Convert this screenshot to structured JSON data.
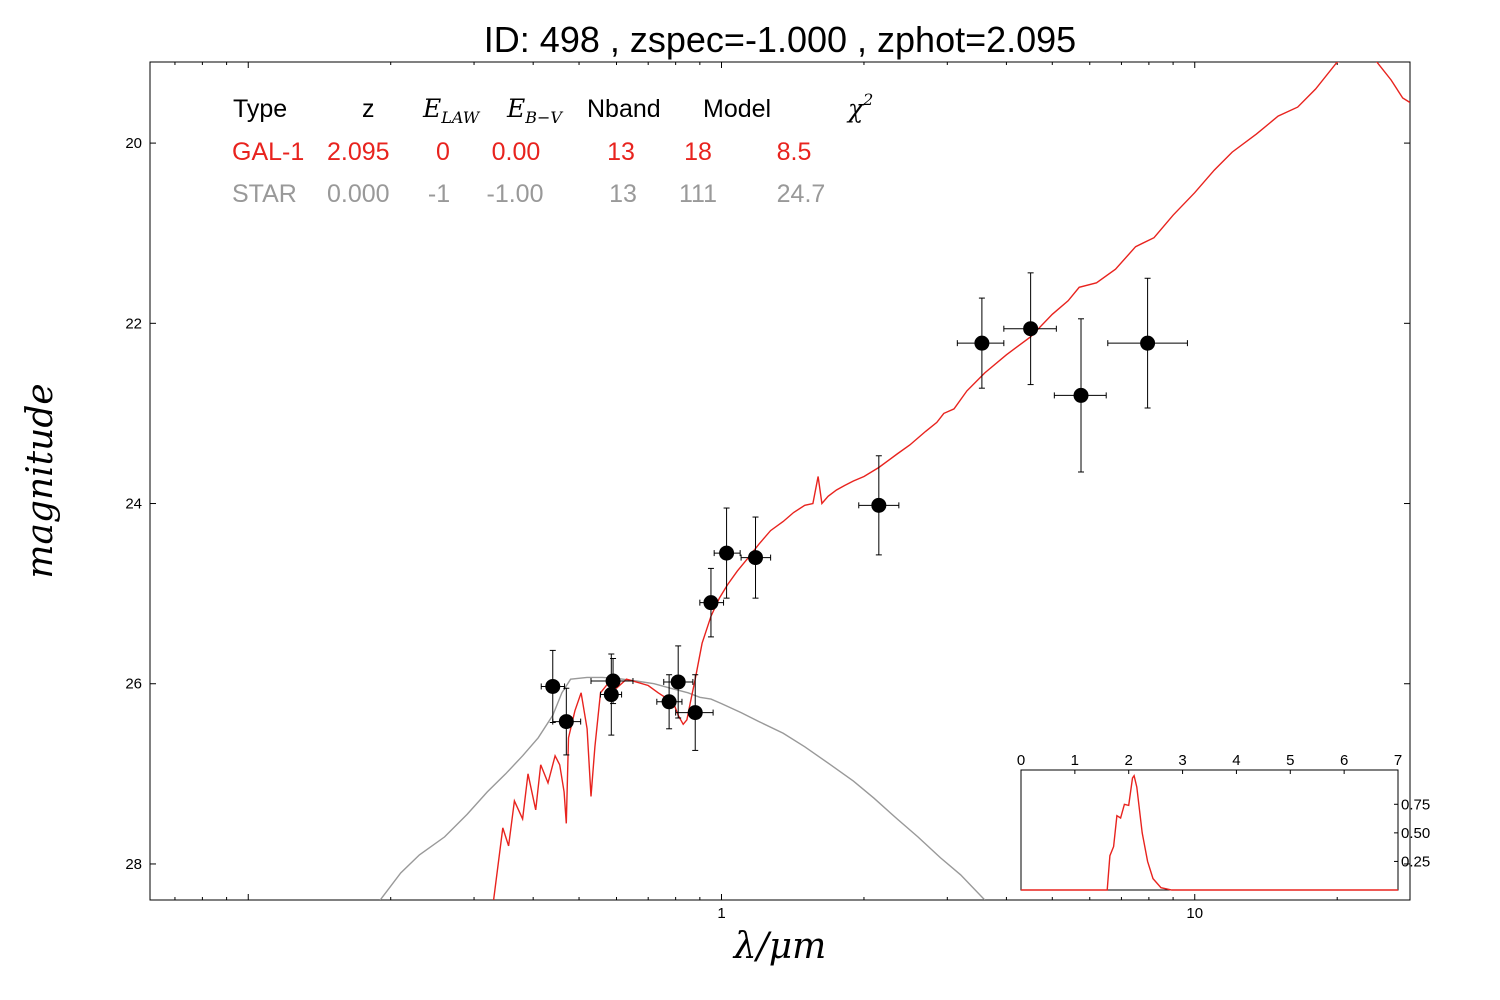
{
  "title": "ID:  498   , zspec=-1.000 , zphot=2.095",
  "colors": {
    "gal": "#e8231e",
    "star": "#999999",
    "points": "#000000"
  },
  "chart_data": {
    "type": "scatter",
    "title": "ID:  498   , zspec=-1.000 , zphot=2.095",
    "xlabel": "λ/μm",
    "ylabel": "magnitude",
    "xscale": "log",
    "xlim": [
      0.062,
      28.5
    ],
    "ylim": [
      28.4,
      19.1
    ],
    "x_ticks": [
      {
        "value": 1,
        "label": "1"
      },
      {
        "value": 10,
        "label": "10"
      }
    ],
    "y_ticks": [
      {
        "value": 20,
        "label": "20"
      },
      {
        "value": 22,
        "label": "22"
      },
      {
        "value": 24,
        "label": "24"
      },
      {
        "value": 26,
        "label": "26"
      },
      {
        "value": 28,
        "label": "28"
      }
    ],
    "observed_points": [
      {
        "x": 0.44,
        "y": 26.03,
        "xerr": [
          0.024,
          0.026
        ],
        "yerr": 0.4
      },
      {
        "x": 0.47,
        "y": 26.42,
        "xerr": [
          0.03,
          0.034
        ],
        "yerr": 0.37
      },
      {
        "x": 0.59,
        "y": 25.97,
        "xerr": [
          0.06,
          0.06
        ],
        "yerr": 0.25
      },
      {
        "x": 0.585,
        "y": 26.12,
        "xerr": [
          0.03,
          0.03
        ],
        "yerr": 0.45
      },
      {
        "x": 0.775,
        "y": 26.2,
        "xerr": [
          0.045,
          0.05
        ],
        "yerr": 0.3
      },
      {
        "x": 0.81,
        "y": 25.98,
        "xerr": [
          0.055,
          0.06
        ],
        "yerr": 0.4
      },
      {
        "x": 0.88,
        "y": 26.32,
        "xerr": [
          0.08,
          0.08
        ],
        "yerr": 0.42
      },
      {
        "x": 0.95,
        "y": 25.1,
        "xerr": [
          0.05,
          0.06
        ],
        "yerr": 0.38
      },
      {
        "x": 1.025,
        "y": 24.55,
        "xerr": [
          0.06,
          0.07
        ],
        "yerr": 0.5
      },
      {
        "x": 1.18,
        "y": 24.6,
        "xerr": [
          0.08,
          0.09
        ],
        "yerr": 0.45
      },
      {
        "x": 2.15,
        "y": 24.02,
        "xerr": [
          0.2,
          0.22
        ],
        "yerr": 0.55
      },
      {
        "x": 3.55,
        "y": 22.22,
        "xerr": [
          0.4,
          0.4
        ],
        "yerr": 0.5
      },
      {
        "x": 4.5,
        "y": 22.06,
        "xerr": [
          0.55,
          0.6
        ],
        "yerr": 0.62
      },
      {
        "x": 5.75,
        "y": 22.8,
        "xerr": [
          0.7,
          0.75
        ],
        "yerr": 0.85
      },
      {
        "x": 7.95,
        "y": 22.22,
        "xerr": [
          1.4,
          1.7
        ],
        "yerr": 0.72
      }
    ],
    "series": [
      {
        "name": "GAL-1",
        "color": "#e8231e",
        "points": [
          [
            0.33,
            28.4
          ],
          [
            0.345,
            27.6
          ],
          [
            0.355,
            27.8
          ],
          [
            0.365,
            27.3
          ],
          [
            0.38,
            27.5
          ],
          [
            0.39,
            27.0
          ],
          [
            0.405,
            27.4
          ],
          [
            0.415,
            26.9
          ],
          [
            0.43,
            27.1
          ],
          [
            0.445,
            26.8
          ],
          [
            0.455,
            26.9
          ],
          [
            0.465,
            27.2
          ],
          [
            0.47,
            27.55
          ],
          [
            0.475,
            26.6
          ],
          [
            0.49,
            26.3
          ],
          [
            0.505,
            26.1
          ],
          [
            0.52,
            26.5
          ],
          [
            0.53,
            27.25
          ],
          [
            0.54,
            26.7
          ],
          [
            0.555,
            26.1
          ],
          [
            0.575,
            26.0
          ],
          [
            0.6,
            26.05
          ],
          [
            0.63,
            25.95
          ],
          [
            0.66,
            25.98
          ],
          [
            0.7,
            26.02
          ],
          [
            0.735,
            26.1
          ],
          [
            0.76,
            26.15
          ],
          [
            0.79,
            26.2
          ],
          [
            0.81,
            26.35
          ],
          [
            0.83,
            26.45
          ],
          [
            0.845,
            26.4
          ],
          [
            0.86,
            26.2
          ],
          [
            0.88,
            25.95
          ],
          [
            0.91,
            25.55
          ],
          [
            0.95,
            25.25
          ],
          [
            0.99,
            25.05
          ],
          [
            1.03,
            24.9
          ],
          [
            1.08,
            24.75
          ],
          [
            1.14,
            24.6
          ],
          [
            1.2,
            24.45
          ],
          [
            1.27,
            24.3
          ],
          [
            1.35,
            24.2
          ],
          [
            1.42,
            24.1
          ],
          [
            1.5,
            24.02
          ],
          [
            1.56,
            24.0
          ],
          [
            1.6,
            23.7
          ],
          [
            1.63,
            24.0
          ],
          [
            1.68,
            23.92
          ],
          [
            1.75,
            23.85
          ],
          [
            1.82,
            23.8
          ],
          [
            1.9,
            23.75
          ],
          [
            2.0,
            23.7
          ],
          [
            2.15,
            23.6
          ],
          [
            2.35,
            23.45
          ],
          [
            2.5,
            23.35
          ],
          [
            2.7,
            23.2
          ],
          [
            2.85,
            23.1
          ],
          [
            2.95,
            23.0
          ],
          [
            3.1,
            22.95
          ],
          [
            3.3,
            22.75
          ],
          [
            3.6,
            22.55
          ],
          [
            4.0,
            22.35
          ],
          [
            4.5,
            22.15
          ],
          [
            5.0,
            21.9
          ],
          [
            5.4,
            21.75
          ],
          [
            5.7,
            21.6
          ],
          [
            6.2,
            21.55
          ],
          [
            6.8,
            21.4
          ],
          [
            7.5,
            21.15
          ],
          [
            8.2,
            21.05
          ],
          [
            9.0,
            20.8
          ],
          [
            10.0,
            20.55
          ],
          [
            11.0,
            20.3
          ],
          [
            12.0,
            20.1
          ],
          [
            13.5,
            19.9
          ],
          [
            15.0,
            19.7
          ],
          [
            16.5,
            19.6
          ],
          [
            18.0,
            19.4
          ],
          [
            20.0,
            19.1
          ],
          [
            22.0,
            19.05
          ],
          [
            24.0,
            19.07
          ],
          [
            26.0,
            19.3
          ],
          [
            27.5,
            19.5
          ],
          [
            28.5,
            19.55
          ]
        ]
      },
      {
        "name": "STAR",
        "color": "#999999",
        "points": [
          [
            0.19,
            28.4
          ],
          [
            0.21,
            28.1
          ],
          [
            0.23,
            27.9
          ],
          [
            0.26,
            27.7
          ],
          [
            0.29,
            27.45
          ],
          [
            0.32,
            27.2
          ],
          [
            0.35,
            27.0
          ],
          [
            0.38,
            26.8
          ],
          [
            0.41,
            26.6
          ],
          [
            0.44,
            26.35
          ],
          [
            0.46,
            26.1
          ],
          [
            0.48,
            25.95
          ],
          [
            0.52,
            25.93
          ],
          [
            0.56,
            25.93
          ],
          [
            0.6,
            25.94
          ],
          [
            0.66,
            25.97
          ],
          [
            0.72,
            26.0
          ],
          [
            0.78,
            26.05
          ],
          [
            0.85,
            26.1
          ],
          [
            0.9,
            26.15
          ],
          [
            0.95,
            26.17
          ],
          [
            1.0,
            26.22
          ],
          [
            1.1,
            26.32
          ],
          [
            1.2,
            26.42
          ],
          [
            1.35,
            26.55
          ],
          [
            1.5,
            26.7
          ],
          [
            1.7,
            26.9
          ],
          [
            1.9,
            27.08
          ],
          [
            2.1,
            27.27
          ],
          [
            2.35,
            27.5
          ],
          [
            2.6,
            27.7
          ],
          [
            2.9,
            27.93
          ],
          [
            3.2,
            28.12
          ],
          [
            3.6,
            28.4
          ]
        ]
      }
    ],
    "legend_table": {
      "headers": [
        "Type",
        "z",
        "E_LAW",
        "E_B−V",
        "Nband",
        "Model",
        "χ²"
      ],
      "rows": [
        {
          "type": "GAL-1",
          "z": "2.095",
          "elaw": "0",
          "ebv": "0.00",
          "nband": "13",
          "model": "18",
          "chi2": "8.5",
          "color": "#e8231e"
        },
        {
          "type": "STAR",
          "z": "0.000",
          "elaw": "-1",
          "ebv": "-1.00",
          "nband": "13",
          "model": "111",
          "chi2": "24.7",
          "color": "#999999"
        }
      ]
    },
    "inset": {
      "type": "line",
      "xlim": [
        0,
        7
      ],
      "ylim": [
        0,
        1.05
      ],
      "x_ticks": [
        "0",
        "1",
        "2",
        "3",
        "4",
        "5",
        "6",
        "7"
      ],
      "y_ticks": [
        {
          "value": 0.25,
          "label": "0.25"
        },
        {
          "value": 0.5,
          "label": "0.50"
        },
        {
          "value": 0.75,
          "label": "0.75"
        }
      ],
      "color": "#e8231e",
      "points": [
        [
          0,
          0
        ],
        [
          1.6,
          0
        ],
        [
          1.65,
          0.3
        ],
        [
          1.72,
          0.38
        ],
        [
          1.78,
          0.65
        ],
        [
          1.85,
          0.63
        ],
        [
          1.92,
          0.75
        ],
        [
          2.0,
          0.74
        ],
        [
          2.07,
          0.98
        ],
        [
          2.1,
          1.0
        ],
        [
          2.15,
          0.9
        ],
        [
          2.25,
          0.5
        ],
        [
          2.35,
          0.25
        ],
        [
          2.45,
          0.1
        ],
        [
          2.6,
          0.02
        ],
        [
          2.8,
          0.0
        ],
        [
          7,
          0
        ]
      ]
    }
  }
}
